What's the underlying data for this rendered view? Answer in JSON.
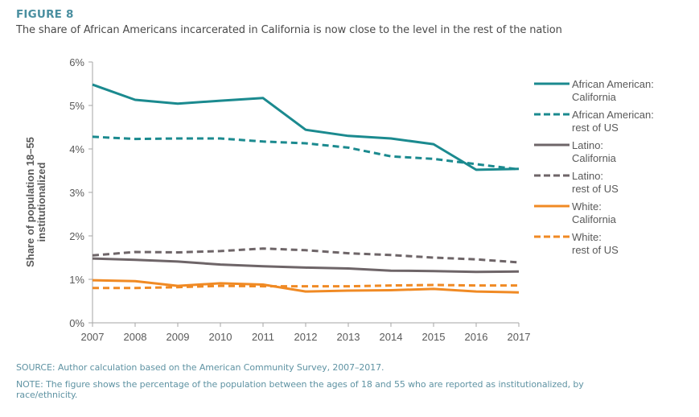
{
  "figure": {
    "label": "FIGURE 8",
    "title": "The share of African Americans incarcerated in California is now close to the level in the rest of the nation",
    "source": "SOURCE: Author calculation based on the American Community Survey, 2007–2017.",
    "note": "NOTE: The figure shows the percentage of the population between the ages of 18 and 55 who are reported as institutionalized, by race/ethnicity."
  },
  "chart_data": {
    "type": "line",
    "title": "The share of African Americans incarcerated in California is now close to the level in the rest of the nation",
    "xlabel": "",
    "ylabel_lines": [
      "Share of population 18–55",
      "institutionalized"
    ],
    "x": [
      2007,
      2008,
      2009,
      2010,
      2011,
      2012,
      2013,
      2014,
      2015,
      2016,
      2017
    ],
    "x_tick_labels": [
      "2007",
      "2008",
      "2009",
      "2010",
      "2011",
      "2012",
      "2013",
      "2014",
      "2015",
      "2016",
      "2017"
    ],
    "ylim": [
      0,
      6
    ],
    "y_ticks": [
      0,
      1,
      2,
      3,
      4,
      5,
      6
    ],
    "y_tick_labels": [
      "0%",
      "1%",
      "2%",
      "3%",
      "4%",
      "5%",
      "6%"
    ],
    "grid": false,
    "legend_position": "right",
    "series": [
      {
        "name": "African American: California",
        "legend_lines": [
          "African American:",
          "California"
        ],
        "color": "#1B8A8F",
        "style": "solid",
        "values": [
          5.48,
          5.13,
          5.04,
          5.11,
          5.17,
          4.44,
          4.3,
          4.24,
          4.11,
          3.52,
          3.54
        ]
      },
      {
        "name": "African American: rest of US",
        "legend_lines": [
          "African American:",
          "rest of US"
        ],
        "color": "#1B8A8F",
        "style": "dashed",
        "values": [
          4.28,
          4.23,
          4.24,
          4.24,
          4.17,
          4.13,
          4.03,
          3.83,
          3.77,
          3.65,
          3.53
        ]
      },
      {
        "name": "Latino: California",
        "legend_lines": [
          "Latino:",
          "California"
        ],
        "color": "#6E6568",
        "style": "solid",
        "values": [
          1.48,
          1.45,
          1.41,
          1.34,
          1.3,
          1.27,
          1.25,
          1.2,
          1.19,
          1.17,
          1.18
        ]
      },
      {
        "name": "Latino: rest of US",
        "legend_lines": [
          "Latino:",
          "rest of US"
        ],
        "color": "#6E6568",
        "style": "dashed",
        "values": [
          1.55,
          1.63,
          1.62,
          1.65,
          1.71,
          1.67,
          1.6,
          1.56,
          1.5,
          1.46,
          1.39
        ]
      },
      {
        "name": "White: California",
        "legend_lines": [
          "White:",
          "California"
        ],
        "color": "#F08A24",
        "style": "solid",
        "values": [
          0.98,
          0.96,
          0.85,
          0.91,
          0.88,
          0.72,
          0.74,
          0.75,
          0.78,
          0.72,
          0.7
        ]
      },
      {
        "name": "White: rest of US",
        "legend_lines": [
          "White:",
          "rest of US"
        ],
        "color": "#F08A24",
        "style": "dashed",
        "values": [
          0.8,
          0.8,
          0.82,
          0.85,
          0.84,
          0.84,
          0.84,
          0.86,
          0.87,
          0.86,
          0.86
        ]
      }
    ]
  }
}
